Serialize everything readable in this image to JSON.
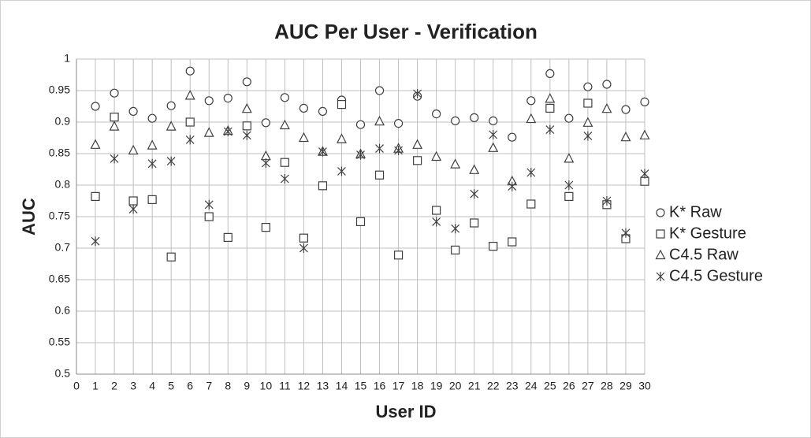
{
  "chart_data": {
    "type": "scatter",
    "title": "AUC Per User - Verification",
    "x_label": "User ID",
    "y_label": "AUC",
    "x": [
      1,
      2,
      3,
      4,
      5,
      6,
      7,
      8,
      9,
      10,
      11,
      12,
      13,
      14,
      15,
      16,
      17,
      18,
      19,
      20,
      21,
      22,
      23,
      24,
      25,
      26,
      27,
      28,
      29,
      30
    ],
    "series": [
      {
        "name": "K* Raw",
        "marker": "circle",
        "color": "#404040",
        "values": [
          0.925,
          0.946,
          0.917,
          0.906,
          0.926,
          0.981,
          0.934,
          0.938,
          0.964,
          0.899,
          0.939,
          0.922,
          0.917,
          0.935,
          0.896,
          0.95,
          0.898,
          0.941,
          0.913,
          0.902,
          0.907,
          0.902,
          0.876,
          0.934,
          0.977,
          0.906,
          0.956,
          0.96,
          0.92,
          0.932
        ]
      },
      {
        "name": "K* Gesture",
        "marker": "square",
        "color": "#404040",
        "values": [
          0.782,
          0.908,
          0.775,
          0.777,
          0.686,
          0.9,
          0.75,
          0.717,
          0.894,
          0.733,
          0.836,
          0.716,
          0.799,
          0.928,
          0.742,
          0.816,
          0.689,
          0.839,
          0.76,
          0.697,
          0.74,
          0.703,
          0.71,
          0.77,
          0.922,
          0.782,
          0.93,
          0.769,
          0.715,
          0.806
        ]
      },
      {
        "name": "C4.5 Raw",
        "marker": "triangle",
        "color": "#404040",
        "values": [
          0.864,
          0.893,
          0.855,
          0.863,
          0.893,
          0.942,
          0.883,
          0.886,
          0.921,
          0.846,
          0.895,
          0.875,
          0.853,
          0.873,
          0.849,
          0.901,
          0.858,
          0.864,
          0.845,
          0.833,
          0.824,
          0.859,
          0.806,
          0.905,
          0.937,
          0.842,
          0.899,
          0.921,
          0.876,
          0.879
        ]
      },
      {
        "name": "C4.5 Gesture",
        "marker": "asterisk",
        "color": "#404040",
        "values": [
          0.711,
          0.842,
          0.762,
          0.834,
          0.838,
          0.872,
          0.769,
          0.885,
          0.879,
          0.835,
          0.81,
          0.7,
          0.853,
          0.822,
          0.848,
          0.858,
          0.855,
          0.945,
          0.742,
          0.731,
          0.786,
          0.88,
          0.798,
          0.82,
          0.888,
          0.8,
          0.878,
          0.775,
          0.724,
          0.818
        ]
      }
    ],
    "xlim": [
      0,
      30
    ],
    "xticks": [
      0,
      1,
      2,
      3,
      4,
      5,
      6,
      7,
      8,
      9,
      10,
      11,
      12,
      13,
      14,
      15,
      16,
      17,
      18,
      19,
      20,
      21,
      22,
      23,
      24,
      25,
      26,
      27,
      28,
      29,
      30
    ],
    "ylim": [
      0.5,
      1
    ],
    "yticks": [
      0.5,
      0.55,
      0.6,
      0.65,
      0.7,
      0.75,
      0.8,
      0.85,
      0.9,
      0.95,
      1
    ],
    "grid": true,
    "legend": "right"
  }
}
